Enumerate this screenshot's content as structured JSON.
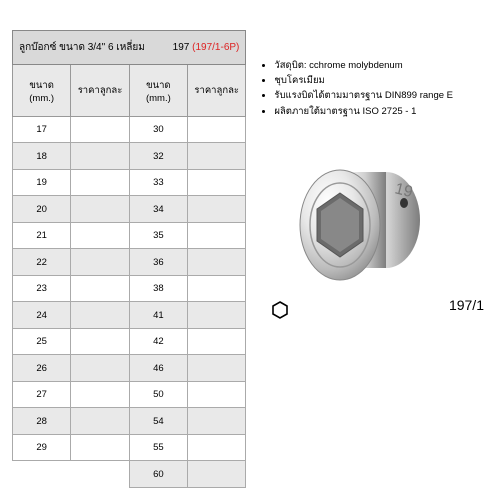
{
  "title": {
    "text_th": "ลูกบ๊อกซ์ ขนาด 3/4\" 6 เหลี่ยม",
    "code_num": "197",
    "code_red": "(197/1-6P)"
  },
  "headers": {
    "size": "ขนาด (mm.)",
    "price": "ราคาลูกละ"
  },
  "table_left": {
    "rows": [
      "17",
      "18",
      "19",
      "20",
      "21",
      "22",
      "23",
      "24",
      "25",
      "26",
      "27",
      "28",
      "29"
    ]
  },
  "table_right": {
    "rows": [
      "30",
      "32",
      "33",
      "34",
      "35",
      "36",
      "38",
      "41",
      "42",
      "46",
      "50",
      "54",
      "55",
      "60"
    ]
  },
  "bullets": [
    "วัสดุบิต: cchrome molybdenum",
    "ชุบโครเมียม",
    "รับแรงบิดได้ตามมาตรฐาน DIN899 range E",
    "ผลิตภายใต้มาตรฐาน ISO 2725 - 1"
  ],
  "product_code": "197/1",
  "colors": {
    "header_bg": "#d9d9d9",
    "subhead_bg": "#e9e9e9",
    "row_even": "#ffffff",
    "row_odd": "#e9e9e9",
    "border": "#999999",
    "red": "#dd2222",
    "text": "#000000",
    "socket_light": "#f0f0f0",
    "socket_mid": "#c8c8c8",
    "socket_dark": "#888888"
  }
}
